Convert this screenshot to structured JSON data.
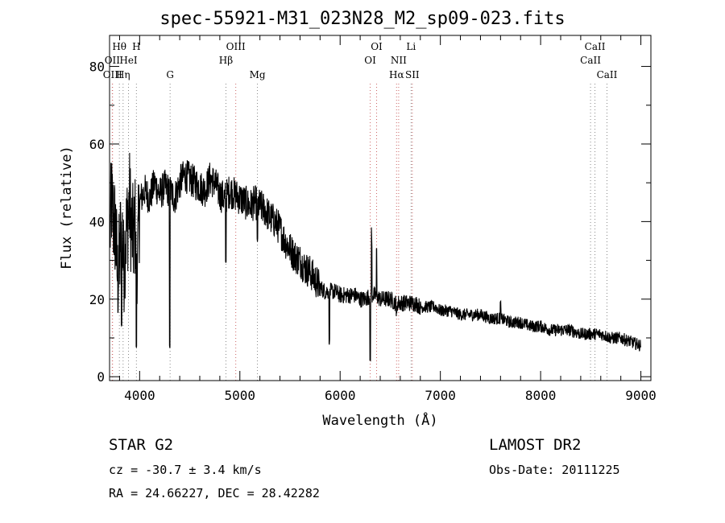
{
  "title": "spec-55921-M31_023N28_M2_sp09-023.fits",
  "chart_data": {
    "type": "line",
    "title": "spec-55921-M31_023N28_M2_sp09-023.fits",
    "xlabel": "Wavelength (Å)",
    "ylabel": "Flux (relative)",
    "xlim": [
      3700,
      9100
    ],
    "ylim": [
      -1,
      88
    ],
    "xticks": [
      4000,
      5000,
      6000,
      7000,
      8000,
      9000
    ],
    "yticks": [
      0,
      20,
      40,
      60,
      80
    ],
    "grid": false,
    "series": [
      {
        "color": "#000000",
        "x": [
          3700,
          3720,
          3740,
          3760,
          3780,
          3800,
          3820,
          3840,
          3860,
          3880,
          3900,
          3920,
          3940,
          3960,
          3980,
          4000,
          4050,
          4100,
          4150,
          4200,
          4250,
          4300,
          4350,
          4400,
          4450,
          4500,
          4550,
          4600,
          4650,
          4700,
          4750,
          4800,
          4850,
          4900,
          4950,
          5000,
          5050,
          5100,
          5150,
          5200,
          5250,
          5300,
          5350,
          5400,
          5450,
          5500,
          5550,
          5600,
          5650,
          5700,
          5750,
          5800,
          5850,
          5900,
          5950,
          6000,
          6050,
          6100,
          6150,
          6200,
          6250,
          6300,
          6350,
          6400,
          6450,
          6500,
          6550,
          6600,
          6650,
          6700,
          6750,
          6800,
          6850,
          6900,
          6950,
          7000,
          7100,
          7200,
          7300,
          7400,
          7500,
          7600,
          7700,
          7800,
          7900,
          8000,
          8100,
          8200,
          8300,
          8400,
          8500,
          8600,
          8700,
          8800,
          8900,
          9000
        ],
        "y": [
          35,
          45,
          40,
          38,
          25,
          30,
          42,
          28,
          36,
          40,
          45,
          38,
          35,
          40,
          30,
          45,
          48,
          46,
          50,
          47,
          49,
          48,
          46,
          50,
          52,
          51,
          50,
          49,
          48,
          51,
          50,
          47,
          46,
          48,
          47,
          46,
          45,
          44,
          45,
          44,
          43,
          41,
          40,
          38,
          35,
          33,
          31,
          30,
          28,
          27,
          25,
          23,
          22,
          22,
          22,
          21,
          21,
          21,
          21,
          20,
          20,
          21,
          21,
          20,
          20,
          20,
          19,
          19,
          19,
          19,
          19,
          18,
          18,
          18,
          18,
          17,
          17,
          16,
          16,
          16,
          15,
          15,
          14,
          14,
          13,
          13,
          12,
          12,
          12,
          11,
          11,
          11,
          10,
          10,
          9,
          8
        ]
      }
    ],
    "features": [
      {
        "x": 4300,
        "y": 8
      },
      {
        "x": 4861,
        "y": 30
      },
      {
        "x": 5175,
        "y": 35
      },
      {
        "x": 5893,
        "y": 9
      },
      {
        "x": 6300,
        "y": 4
      },
      {
        "x": 6563,
        "y": 16
      },
      {
        "x": 3968,
        "y": 8
      },
      {
        "x": 3820,
        "y": 13
      },
      {
        "x": 7600,
        "y": 19
      }
    ],
    "line_markers": [
      {
        "label": "Hθ",
        "wl": 3798,
        "row": 1,
        "color": "#888888"
      },
      {
        "label": "H",
        "wl": 3968,
        "row": 1,
        "color": "#888888"
      },
      {
        "label": "OIII",
        "wl": 4959,
        "row": 1,
        "color": "#cc6666"
      },
      {
        "label": "OI",
        "wl": 6364,
        "row": 1,
        "color": "#cc6666"
      },
      {
        "label": "Li",
        "wl": 6708,
        "row": 1,
        "color": "#888888"
      },
      {
        "label": "CaII",
        "wl": 8542,
        "row": 1,
        "color": "#888888"
      },
      {
        "label": "OII",
        "wl": 3727,
        "row": 2,
        "color": "#cc6666"
      },
      {
        "label": "HeI",
        "wl": 3889,
        "row": 2,
        "color": "#888888"
      },
      {
        "label": "Hβ",
        "wl": 4861,
        "row": 2,
        "color": "#888888"
      },
      {
        "label": "OI",
        "wl": 6300,
        "row": 2,
        "color": "#cc6666"
      },
      {
        "label": "NII",
        "wl": 6584,
        "row": 2,
        "color": "#cc6666"
      },
      {
        "label": "CaII",
        "wl": 8498,
        "row": 2,
        "color": "#888888"
      },
      {
        "label": "OIII",
        "wl": 3730,
        "row": 3,
        "color": "#cc6666"
      },
      {
        "label": "Hη",
        "wl": 3835,
        "row": 3,
        "color": "#888888"
      },
      {
        "label": "G",
        "wl": 4304,
        "row": 3,
        "color": "#888888"
      },
      {
        "label": "Mg",
        "wl": 5175,
        "row": 3,
        "color": "#888888"
      },
      {
        "label": "Hα",
        "wl": 6563,
        "row": 3,
        "color": "#cc6666"
      },
      {
        "label": "SII",
        "wl": 6720,
        "row": 3,
        "color": "#cc6666"
      },
      {
        "label": "CaII",
        "wl": 8662,
        "row": 3,
        "color": "#888888"
      }
    ]
  },
  "info": {
    "class_line": "STAR    G2",
    "cz_line": "cz = -30.7 ± 3.4 km/s",
    "radec_line": "RA =  24.66227, DEC =  28.42282",
    "survey": "LAMOST DR2",
    "obs_date": "Obs-Date: 20111225"
  }
}
